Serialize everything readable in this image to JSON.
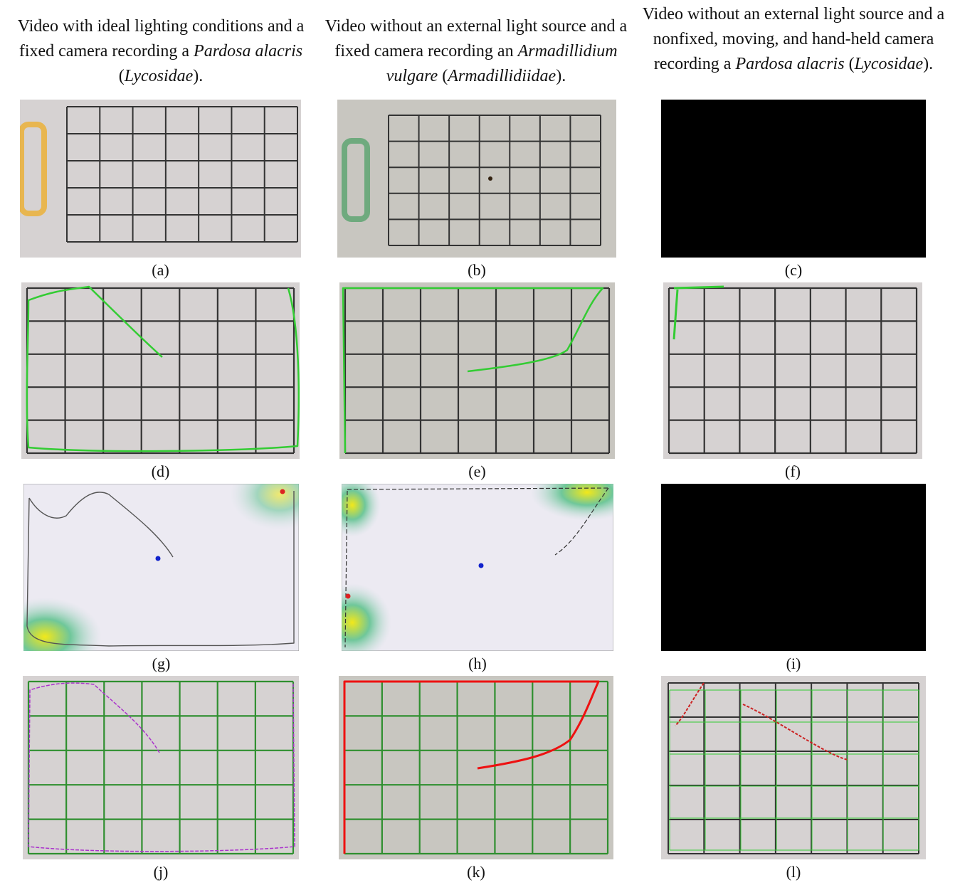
{
  "columns": [
    {
      "header": [
        "Video with ideal lighting conditions and a fixed camera recording a ",
        "Pardosa alacris",
        " (",
        "Lycosidae",
        ")."
      ]
    },
    {
      "header": [
        "Video without an external light source and a fixed camera recording an ",
        "Armadillidium vulgare",
        " (",
        "Armadillidiidae",
        ")."
      ]
    },
    {
      "header": [
        "Video without an external light source and a nonfixed, moving, and hand-held camera recording a ",
        "Pardosa alacris",
        " (",
        "Lycosidae",
        ")."
      ]
    }
  ],
  "panels": [
    "(a)",
    "(b)",
    "(c)",
    "(d)",
    "(e)",
    "(f)",
    "(g)",
    "(h)",
    "(i)",
    "(j)",
    "(k)",
    "(l)"
  ]
}
